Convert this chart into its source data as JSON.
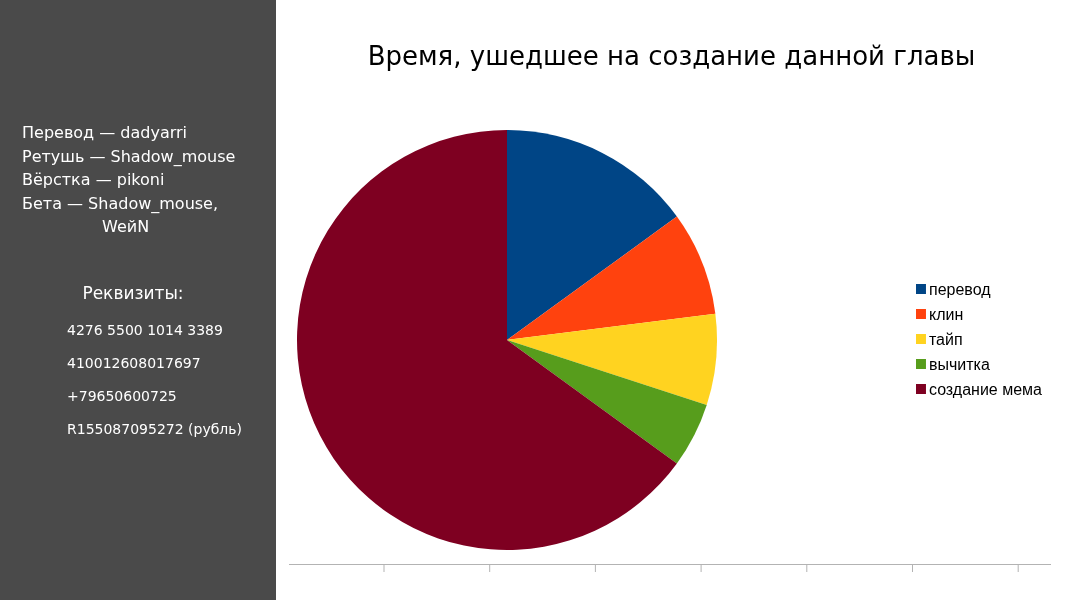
{
  "chart_data": {
    "type": "pie",
    "title": "Время, ушедшее на создание данной главы",
    "categories": [
      "перевод",
      "клин",
      "тайп",
      "вычитка",
      "создание мема"
    ],
    "values": [
      15,
      8,
      7,
      5,
      65
    ],
    "colors": [
      "#004586",
      "#ff420e",
      "#ffd320",
      "#579d1c",
      "#7e0021"
    ],
    "legend": "right",
    "annotations": [
      "Перевод — dadyarri",
      "Ретушь — Shadow_mouse",
      "Вёрстка — pikoni",
      "Бета — Shadow_mouse, WeйN",
      "Реквизиты:",
      "4276 5500 1014 3389",
      "410012608017697",
      "+79650600725",
      "R155087095272 (рубль)"
    ]
  }
}
